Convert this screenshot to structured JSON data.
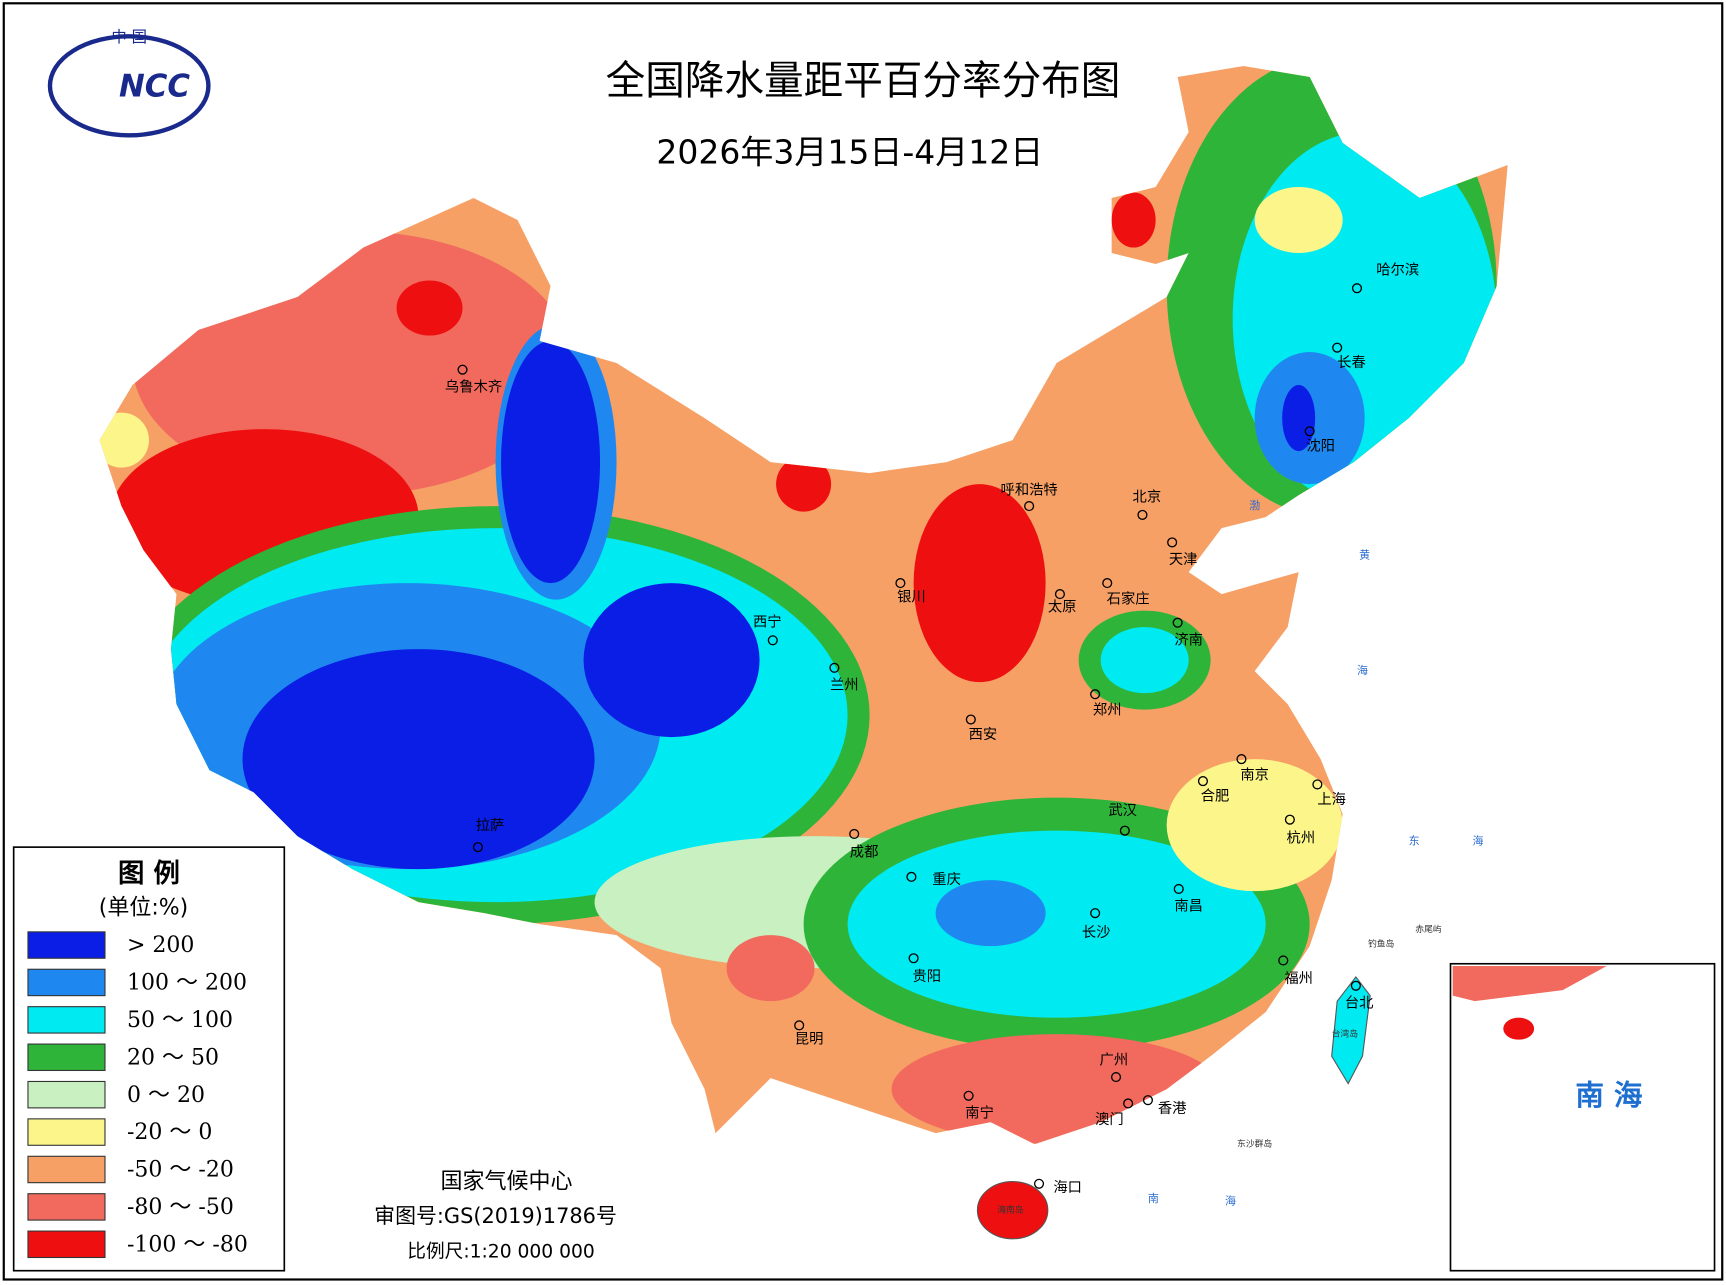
{
  "logo": {
    "top": "中 国",
    "text": "NCC"
  },
  "title": "全国降水量距平百分率分布图",
  "subtitle": "2026年3月15日-4月12日",
  "legend": {
    "title": "图 例",
    "unit": "(单位:%)",
    "items": [
      {
        "label": "> 200",
        "color": "#0a1ee6"
      },
      {
        "label": "100 ～ 200",
        "color": "#1e88f0"
      },
      {
        "label": "50 ～ 100",
        "color": "#00eaf2"
      },
      {
        "label": "20 ～ 50",
        "color": "#2fb43a"
      },
      {
        "label": "0 ～ 20",
        "color": "#c8f0c0"
      },
      {
        "label": "-20 ～ 0",
        "color": "#fbf58a"
      },
      {
        "label": "-50 ～ -20",
        "color": "#f7a066"
      },
      {
        "label": "-80 ～ -50",
        "color": "#f26a5e"
      },
      {
        "label": "-100 ～ -80",
        "color": "#ee1010"
      }
    ]
  },
  "cities": [
    "乌鲁木齐",
    "哈尔滨",
    "长春",
    "沈阳",
    "呼和浩特",
    "北京",
    "天津",
    "石家庄",
    "太原",
    "济南",
    "银川",
    "西宁",
    "兰州",
    "郑州",
    "西安",
    "南京",
    "合肥",
    "上海",
    "武汉",
    "杭州",
    "拉萨",
    "成都",
    "重庆",
    "南昌",
    "长沙",
    "贵阳",
    "福州",
    "台北",
    "昆明",
    "广州",
    "南宁",
    "香港",
    "澳门",
    "海口"
  ],
  "sea_labels": [
    "渤",
    "黄",
    "海",
    "东",
    "海",
    "南",
    "海"
  ],
  "island_labels": [
    "钓鱼岛",
    "赤尾屿",
    "台湾岛",
    "东沙群岛",
    "海南岛"
  ],
  "footer": {
    "org": "国家气候中心",
    "approval": "审图号:GS(2019)1786号",
    "scale": "比例尺:1:20 000 000"
  },
  "inset": {
    "label": "南 海"
  }
}
